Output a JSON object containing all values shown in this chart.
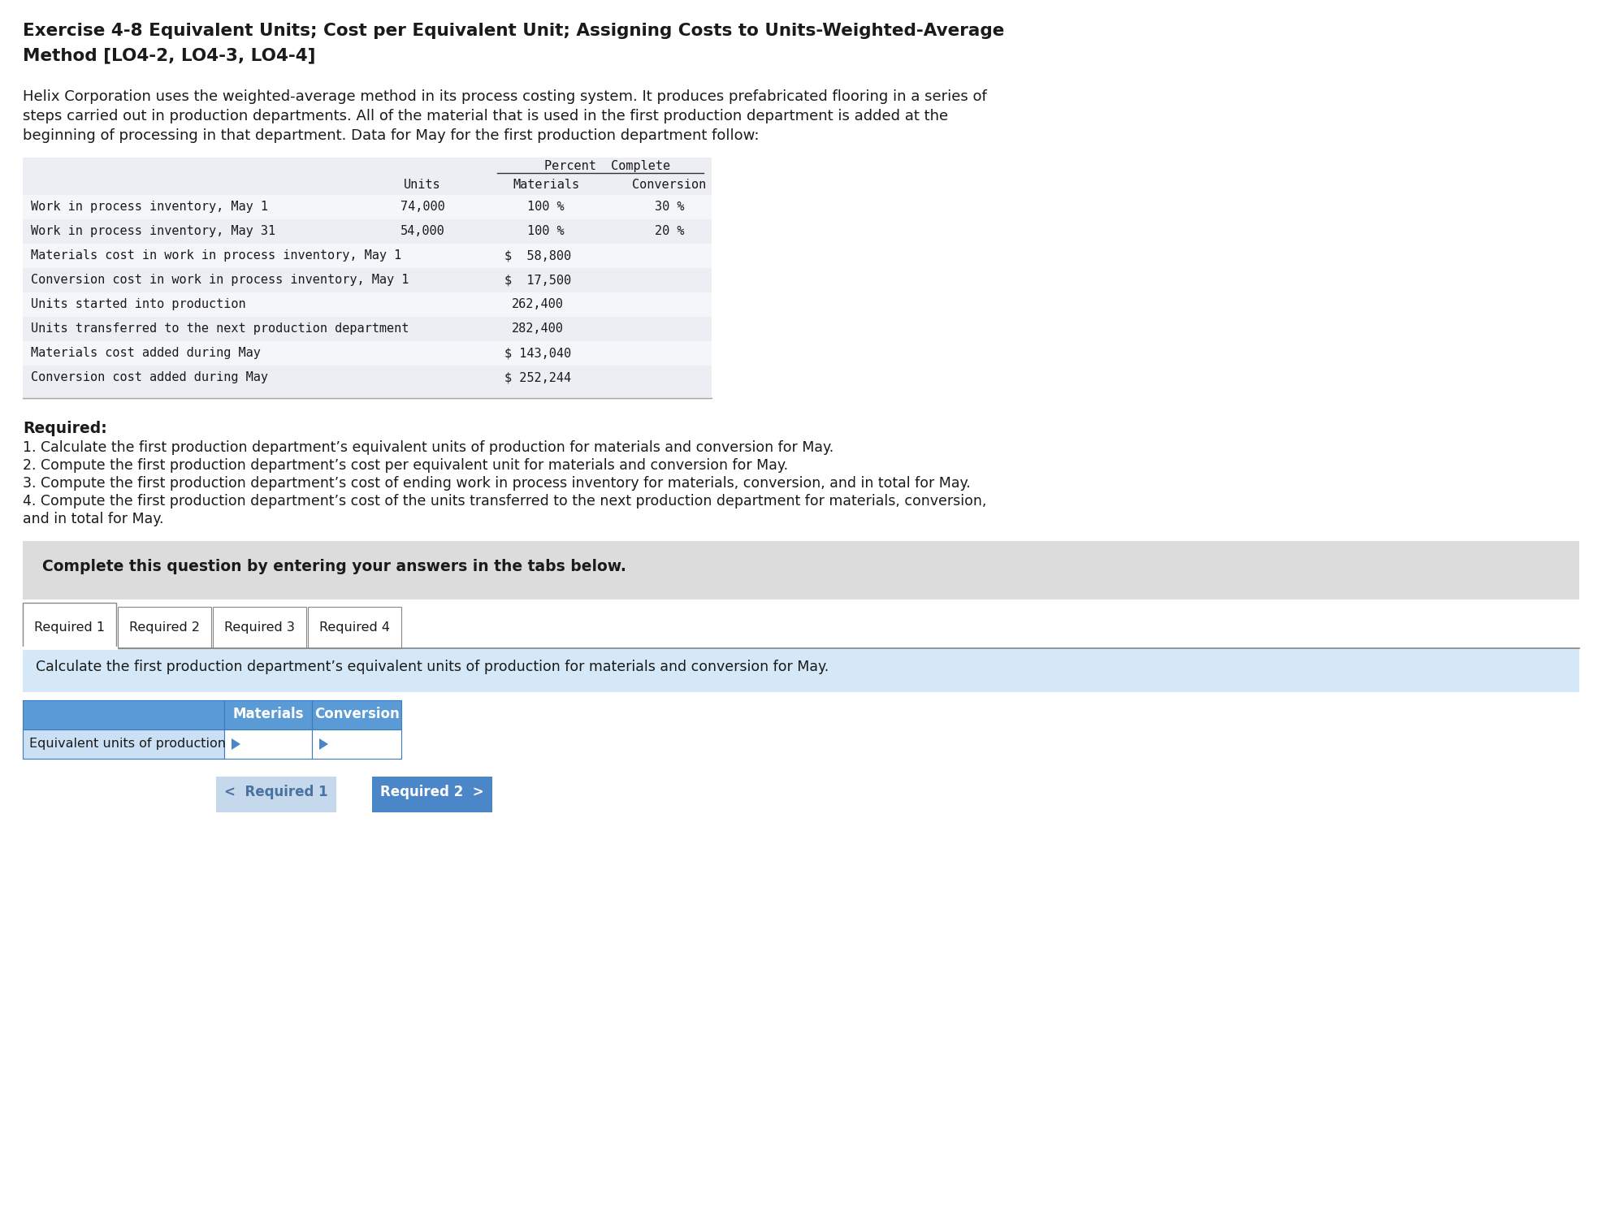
{
  "title_line1": "Exercise 4-8 Equivalent Units; Cost per Equivalent Unit; Assigning Costs to Units-Weighted-Average",
  "title_line2": "Method [LO4-2, LO4-3, LO4-4]",
  "body_line1": "Helix Corporation uses the weighted-average method in its process costing system. It produces prefabricated flooring in a series of",
  "body_line2": "steps carried out in production departments. All of the material that is used in the first production department is added at the",
  "body_line3": "beginning of processing in that department. Data for May for the first production department follow:",
  "table_rows": [
    {
      "label": "Work in process inventory, May 1",
      "units": "74,000",
      "materials": "100 %",
      "conversion": "30 %",
      "value": ""
    },
    {
      "label": "Work in process inventory, May 31",
      "units": "54,000",
      "materials": "100 %",
      "conversion": "20 %",
      "value": ""
    },
    {
      "label": "Materials cost in work in process inventory, May 1",
      "units": "",
      "materials": "",
      "conversion": "",
      "value": "$  58,800"
    },
    {
      "label": "Conversion cost in work in process inventory, May 1",
      "units": "",
      "materials": "",
      "conversion": "",
      "value": "$  17,500"
    },
    {
      "label": "Units started into production",
      "units": "",
      "materials": "",
      "conversion": "",
      "value": "262,400"
    },
    {
      "label": "Units transferred to the next production department",
      "units": "",
      "materials": "",
      "conversion": "",
      "value": "282,400"
    },
    {
      "label": "Materials cost added during May",
      "units": "",
      "materials": "",
      "conversion": "",
      "value": "$ 143,040"
    },
    {
      "label": "Conversion cost added during May",
      "units": "",
      "materials": "",
      "conversion": "",
      "value": "$ 252,244"
    }
  ],
  "required_label": "Required:",
  "required_items": [
    "1. Calculate the first production department’s equivalent units of production for materials and conversion for May.",
    "2. Compute the first production department’s cost per equivalent unit for materials and conversion for May.",
    "3. Compute the first production department’s cost of ending work in process inventory for materials, conversion, and in total for May.",
    "4. Compute the first production department’s cost of the units transferred to the next production department for materials, conversion,",
    "and in total for May."
  ],
  "complete_box_text": "Complete this question by entering your answers in the tabs below.",
  "tabs": [
    "Required 1",
    "Required 2",
    "Required 3",
    "Required 4"
  ],
  "tab_instruction": "Calculate the first production department’s equivalent units of production for materials and conversion for May.",
  "answer_table_headers": [
    "",
    "Materials",
    "Conversion"
  ],
  "answer_table_row": "Equivalent units of production",
  "btn_back_text": "<  Required 1",
  "btn_next_text": "Required 2  >",
  "bg_color": "#ffffff",
  "table_bg_light": "#eceef3",
  "table_bg_white": "#f5f6f9",
  "answer_header_bg": "#5b9bd5",
  "answer_header_text": "#ffffff",
  "complete_box_bg": "#dcdcdc",
  "instruction_box_bg": "#d4e8f7",
  "btn_back_bg": "#c5d8ec",
  "btn_back_text_color": "#4a72a0",
  "btn_next_bg": "#4a86c8",
  "btn_next_text_color": "#ffffff",
  "tab_border": "#888888",
  "mono_font": "DejaVu Sans Mono",
  "sans_font": "DejaVu Sans"
}
